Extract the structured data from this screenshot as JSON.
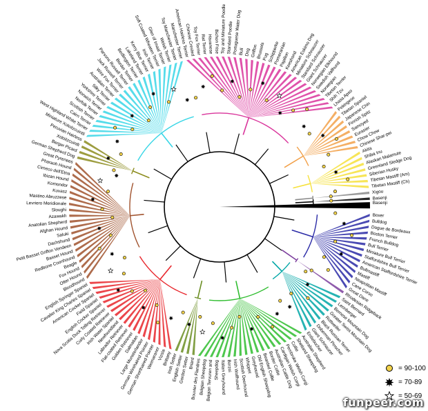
{
  "tree": {
    "root_colors": {
      "red": "#e8262c",
      "magenta": "#d9349b",
      "orange": "#f2a14a",
      "yellow": "#f6e13b",
      "gray": "#8a8a8a",
      "black": "#000000",
      "navy": "#2a2aa6",
      "purple": "#7d3f9e",
      "teal": "#00a6a6",
      "green": "#2fbd2f",
      "olive": "#6b8e23",
      "brown": "#a0522d",
      "darkolive": "#8c8c1e",
      "cyan": "#38d6e6",
      "lavender": "#b98ae6",
      "pink": "#f06bc0"
    },
    "clades": [
      {
        "color": "magenta",
        "breeds": [
          "American Hairless Terrier",
          "Chinese Crested",
          "Toy Fox Terrier",
          "Rat Terrier",
          "Havanese",
          "Bichon Frise",
          "Toy and Miniature Poodle",
          "Standard Poodle",
          "Portuguese Water Dog",
          "Bull",
          "Dog",
          "Griffon",
          "Brussels",
          "Pug",
          "Schipperke",
          "Pomeranian",
          "Papillon",
          "Keeshond",
          "American Eskimo Dog",
          "Miniature Schnauzer",
          "Standard Schnauzer",
          "Giant Schnauzer",
          "Norwegian Elkhound",
          "Swedish Vallhund",
          "Norwegian",
          "Tibetan Terrier",
          "Shih Tzu",
          "Lhasa Apso"
        ]
      },
      {
        "color": "orange",
        "breeds": [
          "Pekingese",
          "Tibetan Spaniel",
          "Japanese Chin",
          "Finnish Spitz",
          "Samoyed",
          "Eurasier",
          "Chow Chow",
          "Chinese Shar-pei"
        ]
      },
      {
        "color": "yellow",
        "breeds": [
          "Akita",
          "Shiba Inu",
          "Alaskan Malamute",
          "Greenland Sledge Dog",
          "Siberian Husky",
          "Tibetan Mastiff (Am)",
          "Tibetan Mastiff (Ch)"
        ]
      },
      {
        "color": "gray",
        "breeds": [
          "Xigou"
        ]
      },
      {
        "color": "black",
        "breeds": [
          "Basenji"
        ]
      },
      {
        "color": "navy",
        "breeds": [
          "Boxer",
          "Bulldog",
          "Dogue de Bordeaux",
          "Boston Terrier",
          "French Bulldog",
          "Bull Terrier",
          "Miniature Bull Terrier",
          "Staffordshire Bull Terrier",
          "American Staffordshire Terrier",
          "Bullmastiff",
          "Mastiff",
          "Neapolitan Mastiff",
          "Cane Corso",
          "Great Dane"
        ]
      },
      {
        "color": "purple",
        "breeds": [
          "Rhodesian Ridgeback"
        ]
      },
      {
        "color": "teal",
        "breeds": [
          "Saint Bernard",
          "Leonberger",
          "Bernese Mountain Dog",
          "Greater Swiss Mountain Dog",
          "Rottweiler",
          "Black Russian Terrier",
          "Doberman Pinscher",
          "Giant Schnauzer",
          "Entlebucher"
        ]
      },
      {
        "color": "green",
        "breeds": [
          "Australian Shepherd",
          "Shetland Sheepdog",
          "Collie",
          "Pembroke Welsh Corgi",
          "Cardigan Welsh Corgi",
          "Australian Cattle Dog",
          "Border Collie",
          "Bearded Collie",
          "Old English Sheepdog",
          "Greyhound",
          "Whippet",
          "Scottish Deerhound",
          "Irish Wolfhound",
          "Borzoi",
          "Italian Greyhound",
          "Sheepdog",
          "Belgian Tervuren and",
          "Belgian Sheepdog",
          "Bouvier des Flandres"
        ]
      },
      {
        "color": "olive",
        "breeds": [
          "Briard",
          "Gordon Setter",
          "English Setter",
          "Irish Setter"
        ]
      },
      {
        "color": "red",
        "breeds": [
          "Brittany",
          "Vizsla",
          "Weimaraner",
          "German Shorthaired Pointer",
          "German Wirehaired Pointer",
          "Large Munsterlander",
          "Dalmatian",
          "Golden Retriever",
          "Flat-coated Retriever",
          "Labrador Retriever",
          "Newfoundland",
          "Irish Water Spaniel",
          "Curly Coated Retriever",
          "Nova Scotia Duck Tolling Retriever",
          "English Cocker Spaniel",
          "Field Spaniel",
          "American Cocker Spaniel",
          "Cavalier King Charles Spaniel",
          "English Springer Spaniel"
        ]
      },
      {
        "color": "brown",
        "breeds": [
          "Bloodhound",
          "Otter Hound",
          "Fox Hound",
          "Beagle",
          "Redbone Coonhound",
          "Basset Hound",
          "Petit Basset Griffon Vendeen",
          "Dachshund",
          "Saluki",
          "Afghan Hound",
          "Anatolian Shepherd",
          "Azawakh",
          "Sloughi",
          "Levriero Meridionale",
          "Mastino Abruzzese",
          "Kuvasz",
          "Komondor",
          "Ibizan Hound",
          "Cirneco dell'Etna",
          "Pharaoh Hound",
          "Great Pyrenees"
        ]
      },
      {
        "color": "darkolive",
        "breeds": [
          "German Shepherd Dog",
          "Berger Picard",
          "Xoloitzcuintli",
          "Peruvian Hairless"
        ]
      },
      {
        "color": "cyan",
        "breeds": [
          "Miniature Xoloitzcuintli",
          "West Highland White Terrier",
          "Cairn Terrier",
          "Scottish Terrier",
          "Norfolk Terrier",
          "Norwich Terrier",
          "Yorkshire Terrier",
          "Silky Terrier",
          "Australian Terrier",
          "Wire Fox Terrier",
          "Jack Russell Terrier",
          "Parsons Russell Terrier",
          "Border Terrier",
          "Bedlington Terrier",
          "Lakeland Terrier",
          "Kerry Blue Terrier",
          "Irish Terrier",
          "Soft Coated Wheaten Terrier",
          "Glen of Imaal Terrier",
          "Welsh Terrier",
          "Toy Manchester Terrier",
          "Manchester Terrier"
        ]
      }
    ]
  },
  "legend": {
    "items": [
      {
        "symbol": "circle",
        "label": "= 90-100"
      },
      {
        "symbol": "burst",
        "label": "= 70-89"
      },
      {
        "symbol": "star",
        "label": "= 50-69"
      }
    ]
  },
  "watermark": "funpeer.com"
}
